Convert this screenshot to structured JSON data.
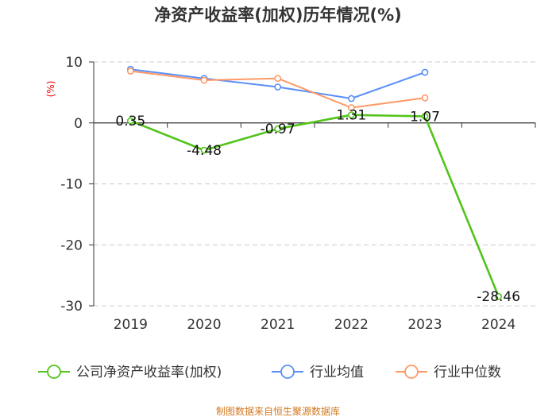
{
  "chart_data": {
    "type": "line",
    "title": "净资产收益率(加权)历年情况(%)",
    "ylabel": "(%)",
    "xlabel": "",
    "categories": [
      "2019",
      "2020",
      "2021",
      "2022",
      "2023",
      "2024"
    ],
    "ylim": [
      -30,
      10
    ],
    "yticks": [
      10,
      0,
      -10,
      -20,
      -30
    ],
    "series": [
      {
        "name": "公司净资产收益率(加权)",
        "color": "#52c41a",
        "values": [
          0.35,
          -4.48,
          -0.97,
          1.31,
          1.07,
          -28.46
        ],
        "labels": [
          "0.35",
          "-4.48",
          "-0.97",
          "1.31",
          "1.07",
          "-28.46"
        ]
      },
      {
        "name": "行业均值",
        "color": "#5b8ff9",
        "values": [
          8.8,
          7.3,
          5.9,
          4.0,
          8.3,
          null
        ]
      },
      {
        "name": "行业中位数",
        "color": "#ff9966",
        "values": [
          8.5,
          7.0,
          7.3,
          2.5,
          4.1,
          null
        ]
      }
    ],
    "source": "制图数据来自恒生聚源数据库"
  }
}
